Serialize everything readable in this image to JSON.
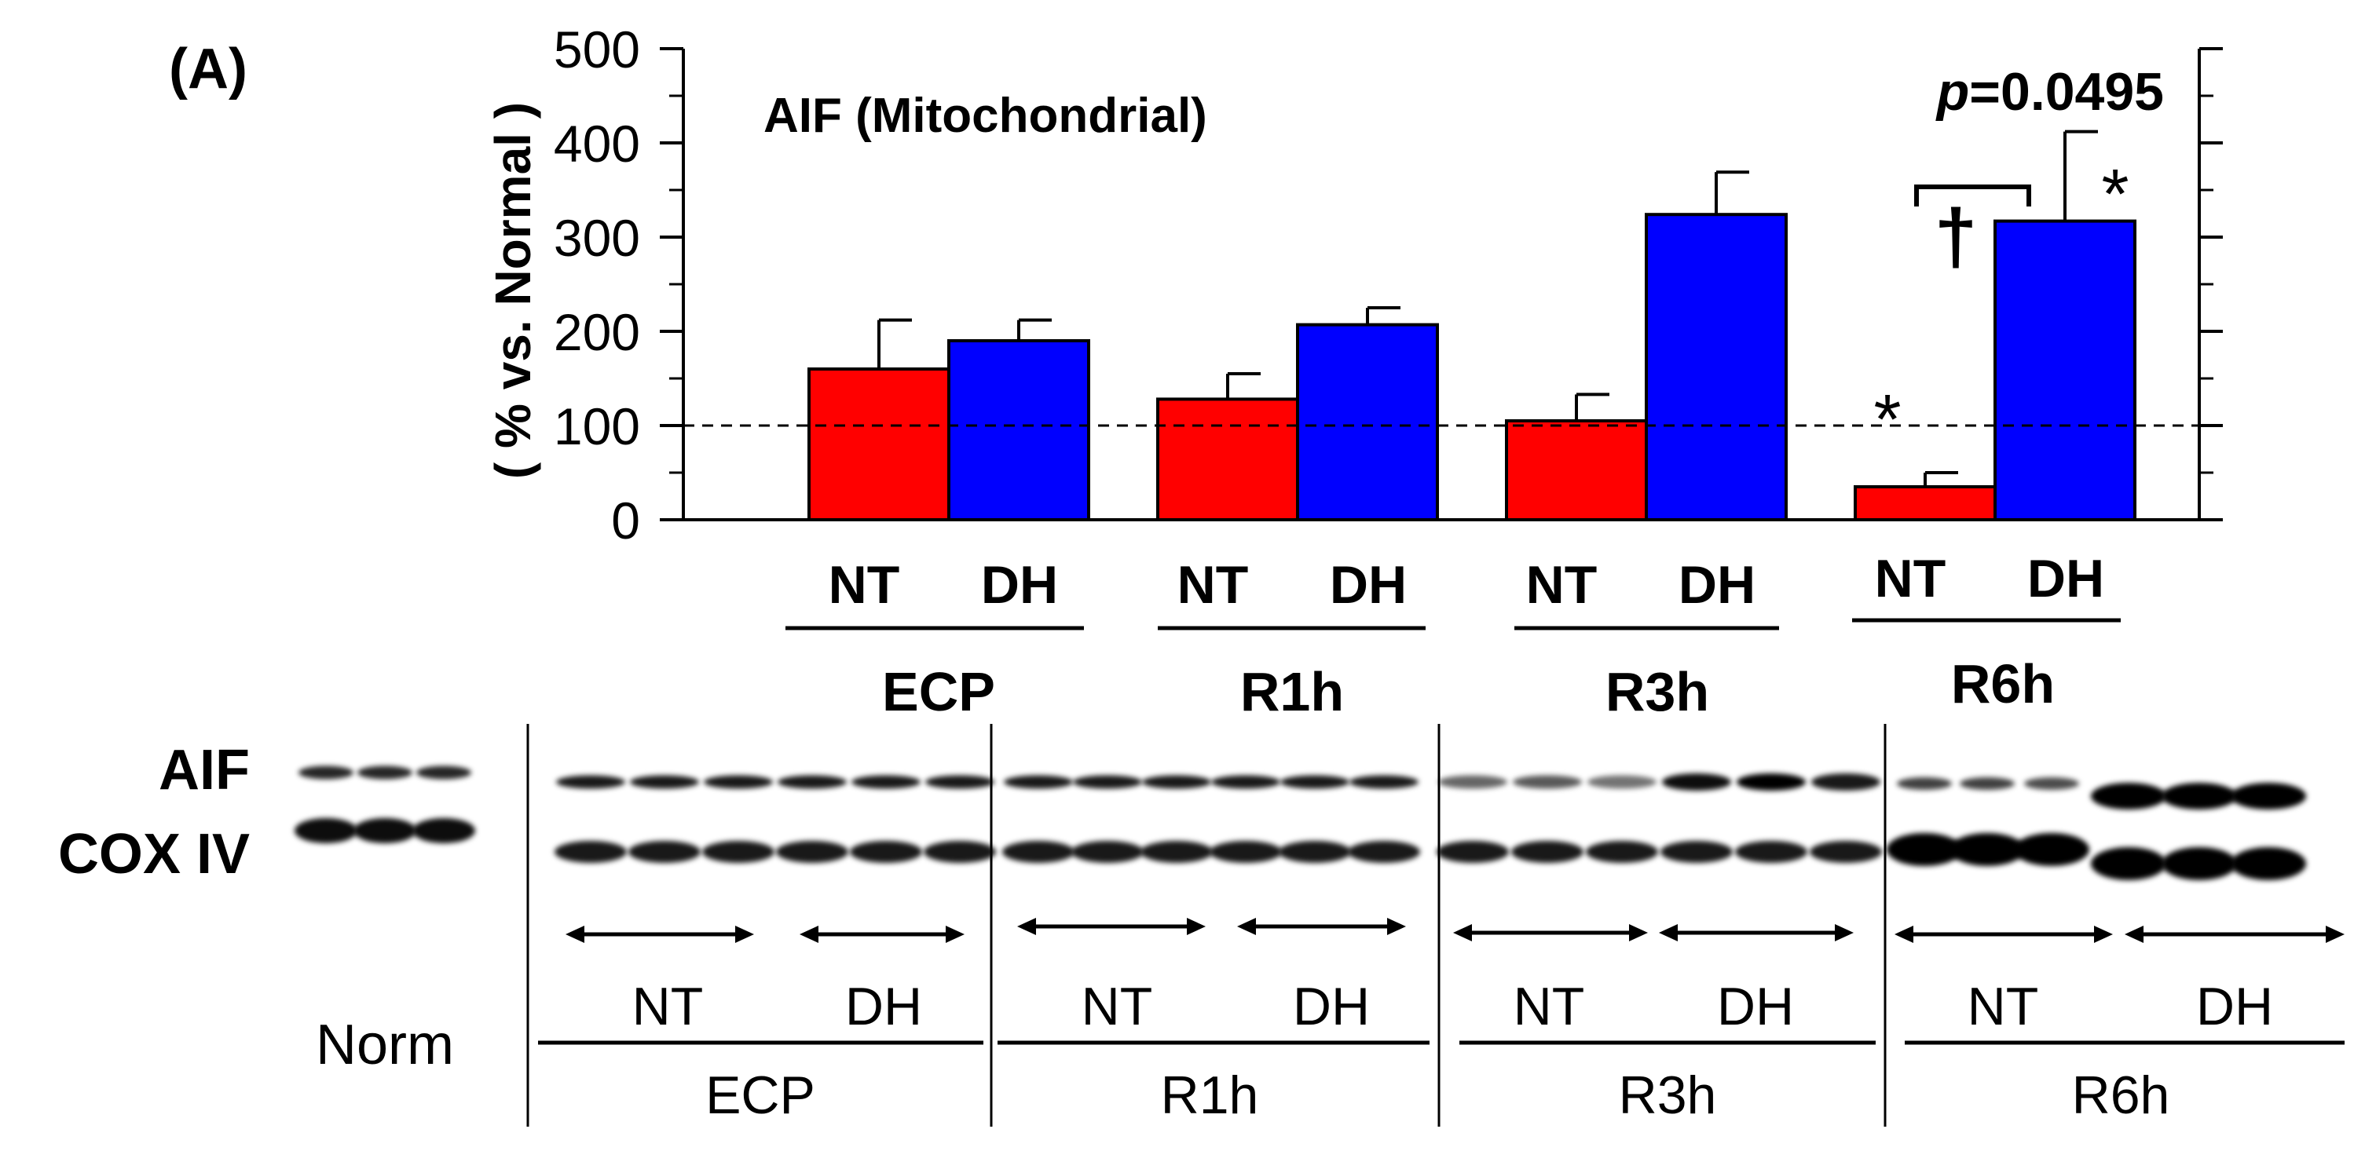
{
  "figure": {
    "panel_label": "(A)"
  },
  "chart_data": {
    "type": "bar",
    "title": "AIF (Mitochondrial)",
    "ylabel": "( % vs. Normal )",
    "xlabel": "",
    "ylim": [
      0,
      500
    ],
    "yticks": [
      0,
      100,
      200,
      300,
      400,
      500
    ],
    "reference_line": 100,
    "groups": [
      "ECP",
      "R1h",
      "R3h",
      "R6h"
    ],
    "group_bar_labels": [
      "NT",
      "DH"
    ],
    "series": [
      {
        "name": "NT",
        "color": "#ff0000",
        "values": [
          160,
          128,
          105,
          35
        ],
        "errors": [
          52,
          27,
          28,
          15
        ]
      },
      {
        "name": "DH",
        "color": "#0000ff",
        "values": [
          190,
          207,
          324,
          317
        ],
        "errors": [
          22,
          18,
          45,
          95
        ]
      }
    ],
    "annotations": {
      "p_prefix": "p",
      "p_value": "=0.0495",
      "dagger": "†",
      "star_nt": "*",
      "star_dh": "*"
    },
    "grid": false,
    "legend": "none"
  },
  "blot": {
    "row_labels": [
      "AIF",
      "COX IV"
    ],
    "norm_label": "Norm",
    "groups": [
      "ECP",
      "R1h",
      "R3h",
      "R6h"
    ],
    "subgroup_labels": [
      "NT",
      "DH"
    ],
    "aif_intensity": {
      "norm": [
        0.85,
        0.85,
        0.85
      ],
      "ECP": [
        0.9,
        0.9,
        0.9,
        0.9,
        0.9,
        0.9
      ],
      "R1h": [
        0.9,
        0.9,
        0.9,
        0.9,
        0.9,
        0.9
      ],
      "R3h": [
        0.6,
        0.65,
        0.55,
        0.95,
        1.0,
        0.9
      ],
      "R6h": [
        0.75,
        0.75,
        0.7,
        1.0,
        1.0,
        1.0
      ]
    }
  }
}
